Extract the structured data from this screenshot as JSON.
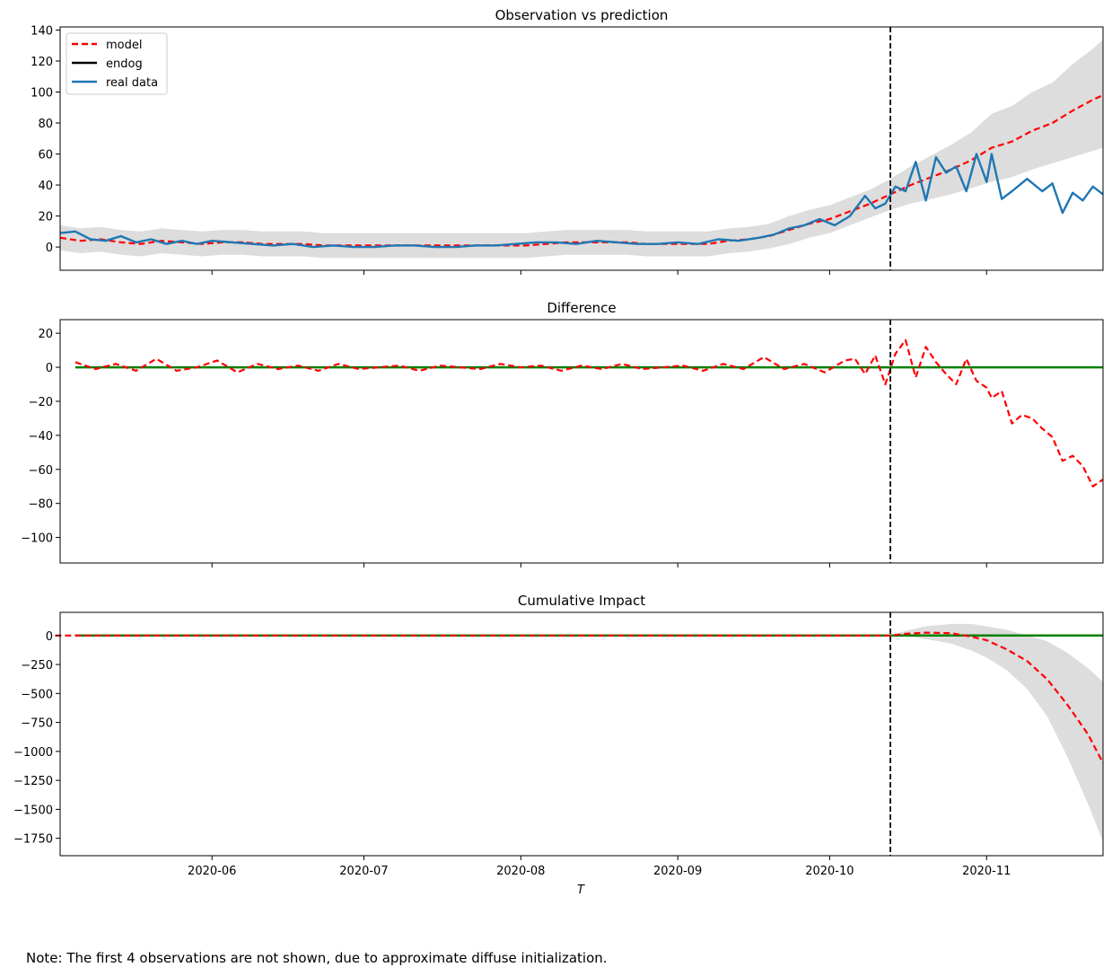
{
  "note": "Note: The first 4 observations are not shown, due to approximate diffuse initialization.",
  "xlabel": "T",
  "x_ticks": [
    "2020-06",
    "2020-07",
    "2020-08",
    "2020-09",
    "2020-10",
    "2020-11"
  ],
  "x_range": [
    "2020-05-02",
    "2020-11-24"
  ],
  "intervention_date": "2020-10-13",
  "colors": {
    "model": "#ff0000",
    "endog": "#000000",
    "real_data": "#1f77b4",
    "zero_line": "#008000",
    "band": "#dddddd"
  },
  "chart_data": [
    {
      "type": "line",
      "title": "Observation vs prediction",
      "ylim": [
        -15,
        142
      ],
      "yticks": [
        0,
        20,
        40,
        60,
        80,
        100,
        120,
        140
      ],
      "legend_position": "top-left",
      "legend": [
        "model",
        "endog",
        "real data"
      ],
      "series": [
        {
          "name": "model",
          "style": "dashed",
          "x": [
            "2020-05-02",
            "2020-05-06",
            "2020-05-10",
            "2020-05-14",
            "2020-05-18",
            "2020-05-22",
            "2020-05-26",
            "2020-05-30",
            "2020-06-03",
            "2020-06-07",
            "2020-06-11",
            "2020-06-15",
            "2020-06-19",
            "2020-06-23",
            "2020-06-27",
            "2020-07-01",
            "2020-07-05",
            "2020-07-09",
            "2020-07-13",
            "2020-07-17",
            "2020-07-21",
            "2020-07-25",
            "2020-07-29",
            "2020-08-02",
            "2020-08-06",
            "2020-08-10",
            "2020-08-14",
            "2020-08-18",
            "2020-08-22",
            "2020-08-26",
            "2020-08-30",
            "2020-09-03",
            "2020-09-07",
            "2020-09-11",
            "2020-09-15",
            "2020-09-19",
            "2020-09-23",
            "2020-09-27",
            "2020-10-01",
            "2020-10-05",
            "2020-10-09",
            "2020-10-13",
            "2020-10-17",
            "2020-10-21",
            "2020-10-25",
            "2020-10-29",
            "2020-11-02",
            "2020-11-06",
            "2020-11-10",
            "2020-11-14",
            "2020-11-18",
            "2020-11-22",
            "2020-11-24"
          ],
          "y": [
            6,
            4,
            5,
            3,
            2,
            4,
            3,
            2,
            3,
            3,
            2,
            2,
            2,
            1,
            1,
            1,
            1,
            1,
            1,
            1,
            1,
            1,
            1,
            1,
            2,
            3,
            3,
            3,
            3,
            2,
            2,
            2,
            2,
            4,
            5,
            7,
            11,
            15,
            18,
            23,
            28,
            34,
            40,
            45,
            50,
            56,
            64,
            68,
            75,
            80,
            88,
            95,
            98
          ],
          "band_lower": [
            -2,
            -4,
            -3,
            -5,
            -6,
            -4,
            -5,
            -6,
            -5,
            -5,
            -6,
            -6,
            -6,
            -7,
            -7,
            -7,
            -7,
            -7,
            -7,
            -7,
            -7,
            -7,
            -7,
            -7,
            -6,
            -5,
            -5,
            -5,
            -5,
            -6,
            -6,
            -6,
            -6,
            -4,
            -3,
            -1,
            2,
            6,
            9,
            14,
            19,
            24,
            28,
            31,
            34,
            38,
            42,
            45,
            50,
            54,
            58,
            62,
            64
          ],
          "band_upper": [
            14,
            12,
            13,
            11,
            10,
            12,
            11,
            10,
            11,
            11,
            10,
            10,
            10,
            9,
            9,
            9,
            9,
            9,
            9,
            9,
            9,
            9,
            9,
            9,
            10,
            11,
            11,
            11,
            11,
            10,
            10,
            10,
            10,
            12,
            13,
            15,
            20,
            24,
            27,
            32,
            37,
            44,
            52,
            59,
            66,
            74,
            86,
            91,
            100,
            106,
            118,
            128,
            134
          ]
        },
        {
          "name": "real data",
          "style": "solid",
          "x": [
            "2020-05-02",
            "2020-05-05",
            "2020-05-08",
            "2020-05-11",
            "2020-05-14",
            "2020-05-17",
            "2020-05-20",
            "2020-05-23",
            "2020-05-26",
            "2020-05-29",
            "2020-06-01",
            "2020-06-05",
            "2020-06-09",
            "2020-06-13",
            "2020-06-17",
            "2020-06-21",
            "2020-06-25",
            "2020-06-29",
            "2020-07-03",
            "2020-07-07",
            "2020-07-11",
            "2020-07-15",
            "2020-07-19",
            "2020-07-23",
            "2020-07-27",
            "2020-07-31",
            "2020-08-04",
            "2020-08-08",
            "2020-08-12",
            "2020-08-16",
            "2020-08-20",
            "2020-08-24",
            "2020-08-28",
            "2020-09-01",
            "2020-09-05",
            "2020-09-09",
            "2020-09-13",
            "2020-09-17",
            "2020-09-20",
            "2020-09-23",
            "2020-09-26",
            "2020-09-29",
            "2020-10-02",
            "2020-10-05",
            "2020-10-08",
            "2020-10-10",
            "2020-10-12",
            "2020-10-14",
            "2020-10-16",
            "2020-10-18",
            "2020-10-20",
            "2020-10-22",
            "2020-10-24",
            "2020-10-26",
            "2020-10-28",
            "2020-10-30",
            "2020-11-01",
            "2020-11-02",
            "2020-11-04",
            "2020-11-06",
            "2020-11-09",
            "2020-11-12",
            "2020-11-14",
            "2020-11-16",
            "2020-11-18",
            "2020-11-20",
            "2020-11-22",
            "2020-11-24"
          ],
          "y": [
            9,
            10,
            5,
            4,
            7,
            3,
            5,
            2,
            4,
            2,
            4,
            3,
            2,
            1,
            2,
            0,
            1,
            0,
            0,
            1,
            1,
            0,
            0,
            1,
            1,
            2,
            3,
            3,
            2,
            4,
            3,
            2,
            2,
            3,
            2,
            5,
            4,
            6,
            8,
            12,
            14,
            18,
            14,
            20,
            33,
            25,
            28,
            39,
            36,
            55,
            30,
            58,
            48,
            52,
            36,
            60,
            42,
            60,
            31,
            36,
            44,
            36,
            41,
            22,
            35,
            30,
            39,
            34
          ]
        },
        {
          "name": "endog",
          "style": "solid",
          "x": [],
          "y": []
        }
      ]
    },
    {
      "type": "line",
      "title": "Difference",
      "ylim": [
        -115,
        28
      ],
      "yticks": [
        20,
        0,
        -20,
        -40,
        -60,
        -80,
        -100
      ],
      "series": [
        {
          "name": "difference",
          "style": "dashed",
          "x": [
            "2020-05-05",
            "2020-05-09",
            "2020-05-13",
            "2020-05-17",
            "2020-05-21",
            "2020-05-25",
            "2020-05-29",
            "2020-06-02",
            "2020-06-06",
            "2020-06-10",
            "2020-06-14",
            "2020-06-18",
            "2020-06-22",
            "2020-06-26",
            "2020-06-30",
            "2020-07-04",
            "2020-07-08",
            "2020-07-12",
            "2020-07-16",
            "2020-07-20",
            "2020-07-24",
            "2020-07-28",
            "2020-08-01",
            "2020-08-05",
            "2020-08-09",
            "2020-08-13",
            "2020-08-17",
            "2020-08-21",
            "2020-08-25",
            "2020-08-29",
            "2020-09-02",
            "2020-09-06",
            "2020-09-10",
            "2020-09-14",
            "2020-09-18",
            "2020-09-22",
            "2020-09-26",
            "2020-09-30",
            "2020-10-04",
            "2020-10-06",
            "2020-10-08",
            "2020-10-10",
            "2020-10-12",
            "2020-10-14",
            "2020-10-16",
            "2020-10-18",
            "2020-10-20",
            "2020-10-22",
            "2020-10-24",
            "2020-10-26",
            "2020-10-28",
            "2020-10-30",
            "2020-11-01",
            "2020-11-02",
            "2020-11-04",
            "2020-11-06",
            "2020-11-08",
            "2020-11-10",
            "2020-11-12",
            "2020-11-14",
            "2020-11-16",
            "2020-11-18",
            "2020-11-20",
            "2020-11-22",
            "2020-11-24"
          ],
          "y": [
            3,
            -1,
            2,
            -2,
            5,
            -2,
            0,
            4,
            -3,
            2,
            -1,
            1,
            -2,
            2,
            -1,
            0,
            1,
            -2,
            1,
            0,
            -1,
            2,
            0,
            1,
            -2,
            1,
            -1,
            2,
            -1,
            0,
            1,
            -2,
            2,
            -1,
            6,
            -1,
            2,
            -3,
            4,
            5,
            -4,
            7,
            -10,
            8,
            16,
            -6,
            12,
            3,
            -4,
            -10,
            5,
            -8,
            -12,
            -18,
            -14,
            -33,
            -28,
            -30,
            -36,
            -41,
            -55,
            -52,
            -58,
            -70,
            -66
          ]
        },
        {
          "name": "zero line",
          "style": "solid",
          "y": [
            0
          ]
        }
      ]
    },
    {
      "type": "line",
      "title": "Cumulative Impact",
      "ylim": [
        -1900,
        200
      ],
      "yticks": [
        0,
        -250,
        -500,
        -750,
        -1000,
        -1250,
        -1500,
        -1750
      ],
      "series": [
        {
          "name": "cumulative impact",
          "style": "dashed",
          "x": [
            "2020-05-01",
            "2020-10-13",
            "2020-10-16",
            "2020-10-20",
            "2020-10-25",
            "2020-10-29",
            "2020-11-01",
            "2020-11-05",
            "2020-11-09",
            "2020-11-13",
            "2020-11-17",
            "2020-11-21",
            "2020-11-24"
          ],
          "y": [
            0,
            0,
            15,
            25,
            20,
            -10,
            -40,
            -120,
            -220,
            -380,
            -600,
            -850,
            -1100
          ],
          "band_lower": [
            0,
            0,
            -5,
            -30,
            -70,
            -130,
            -190,
            -300,
            -460,
            -700,
            -1050,
            -1450,
            -1780
          ],
          "band_upper": [
            0,
            0,
            40,
            80,
            100,
            100,
            80,
            50,
            0,
            -50,
            -150,
            -280,
            -400
          ]
        },
        {
          "name": "zero line",
          "style": "solid",
          "y": [
            0
          ]
        }
      ]
    }
  ]
}
